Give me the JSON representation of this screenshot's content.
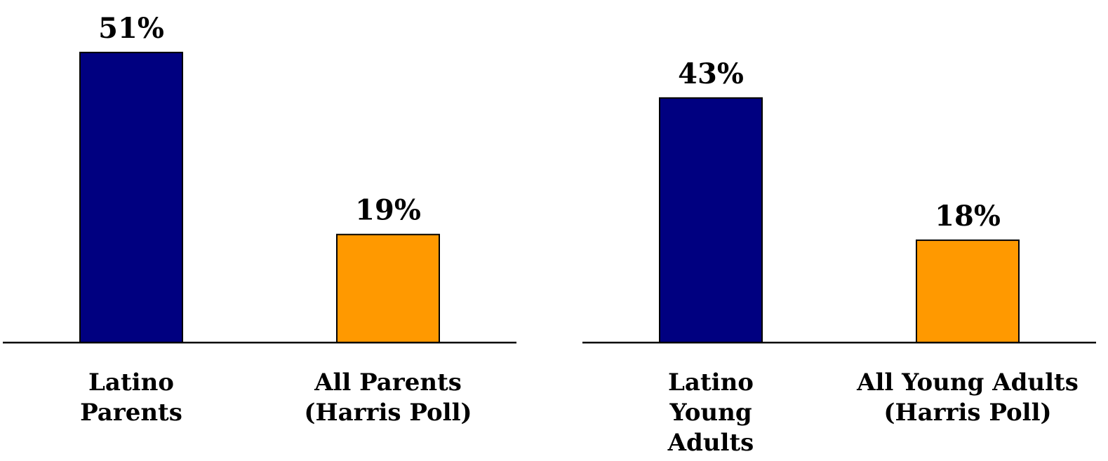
{
  "colors": {
    "latino": "#000080",
    "all": "#FF9900",
    "axis": "#000000",
    "background": "#FFFFFF"
  },
  "chart_data": [
    {
      "type": "bar",
      "categories": [
        [
          "Latino",
          "Parents"
        ],
        [
          "All Parents",
          "(Harris Poll)"
        ]
      ],
      "values": [
        51,
        19
      ],
      "value_labels": [
        "51%",
        "19%"
      ],
      "bar_colors": [
        "#000080",
        "#FF9900"
      ],
      "title": "",
      "xlabel": "",
      "ylabel": "",
      "ylim": [
        0,
        51
      ],
      "grid": false
    },
    {
      "type": "bar",
      "categories": [
        [
          "Latino",
          "Young",
          "Adults"
        ],
        [
          "All Young Adults",
          "(Harris Poll)"
        ]
      ],
      "values": [
        43,
        18
      ],
      "value_labels": [
        "43%",
        "18%"
      ],
      "bar_colors": [
        "#000080",
        "#FF9900"
      ],
      "title": "",
      "xlabel": "",
      "ylabel": "",
      "ylim": [
        0,
        51
      ],
      "grid": false
    }
  ]
}
